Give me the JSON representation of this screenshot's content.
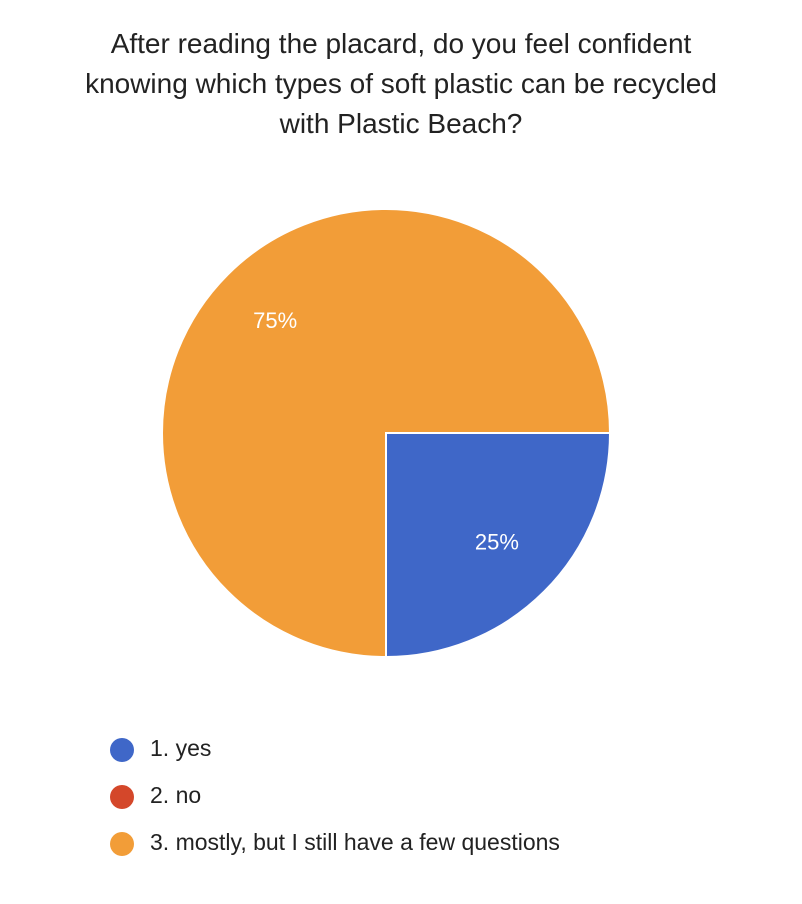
{
  "chart_data": {
    "type": "pie",
    "title": "After reading the placard, do you feel confident knowing which types of soft plastic can be recycled with Plastic Beach?",
    "categories": [
      "1. yes",
      "2. no",
      "3. mostly, but I still have a few questions"
    ],
    "values": [
      25,
      0,
      75
    ],
    "value_labels": [
      "25%",
      null,
      "75%"
    ],
    "colors": [
      "#3f67c8",
      "#d4472a",
      "#f29d38"
    ],
    "legend": "bottom"
  }
}
